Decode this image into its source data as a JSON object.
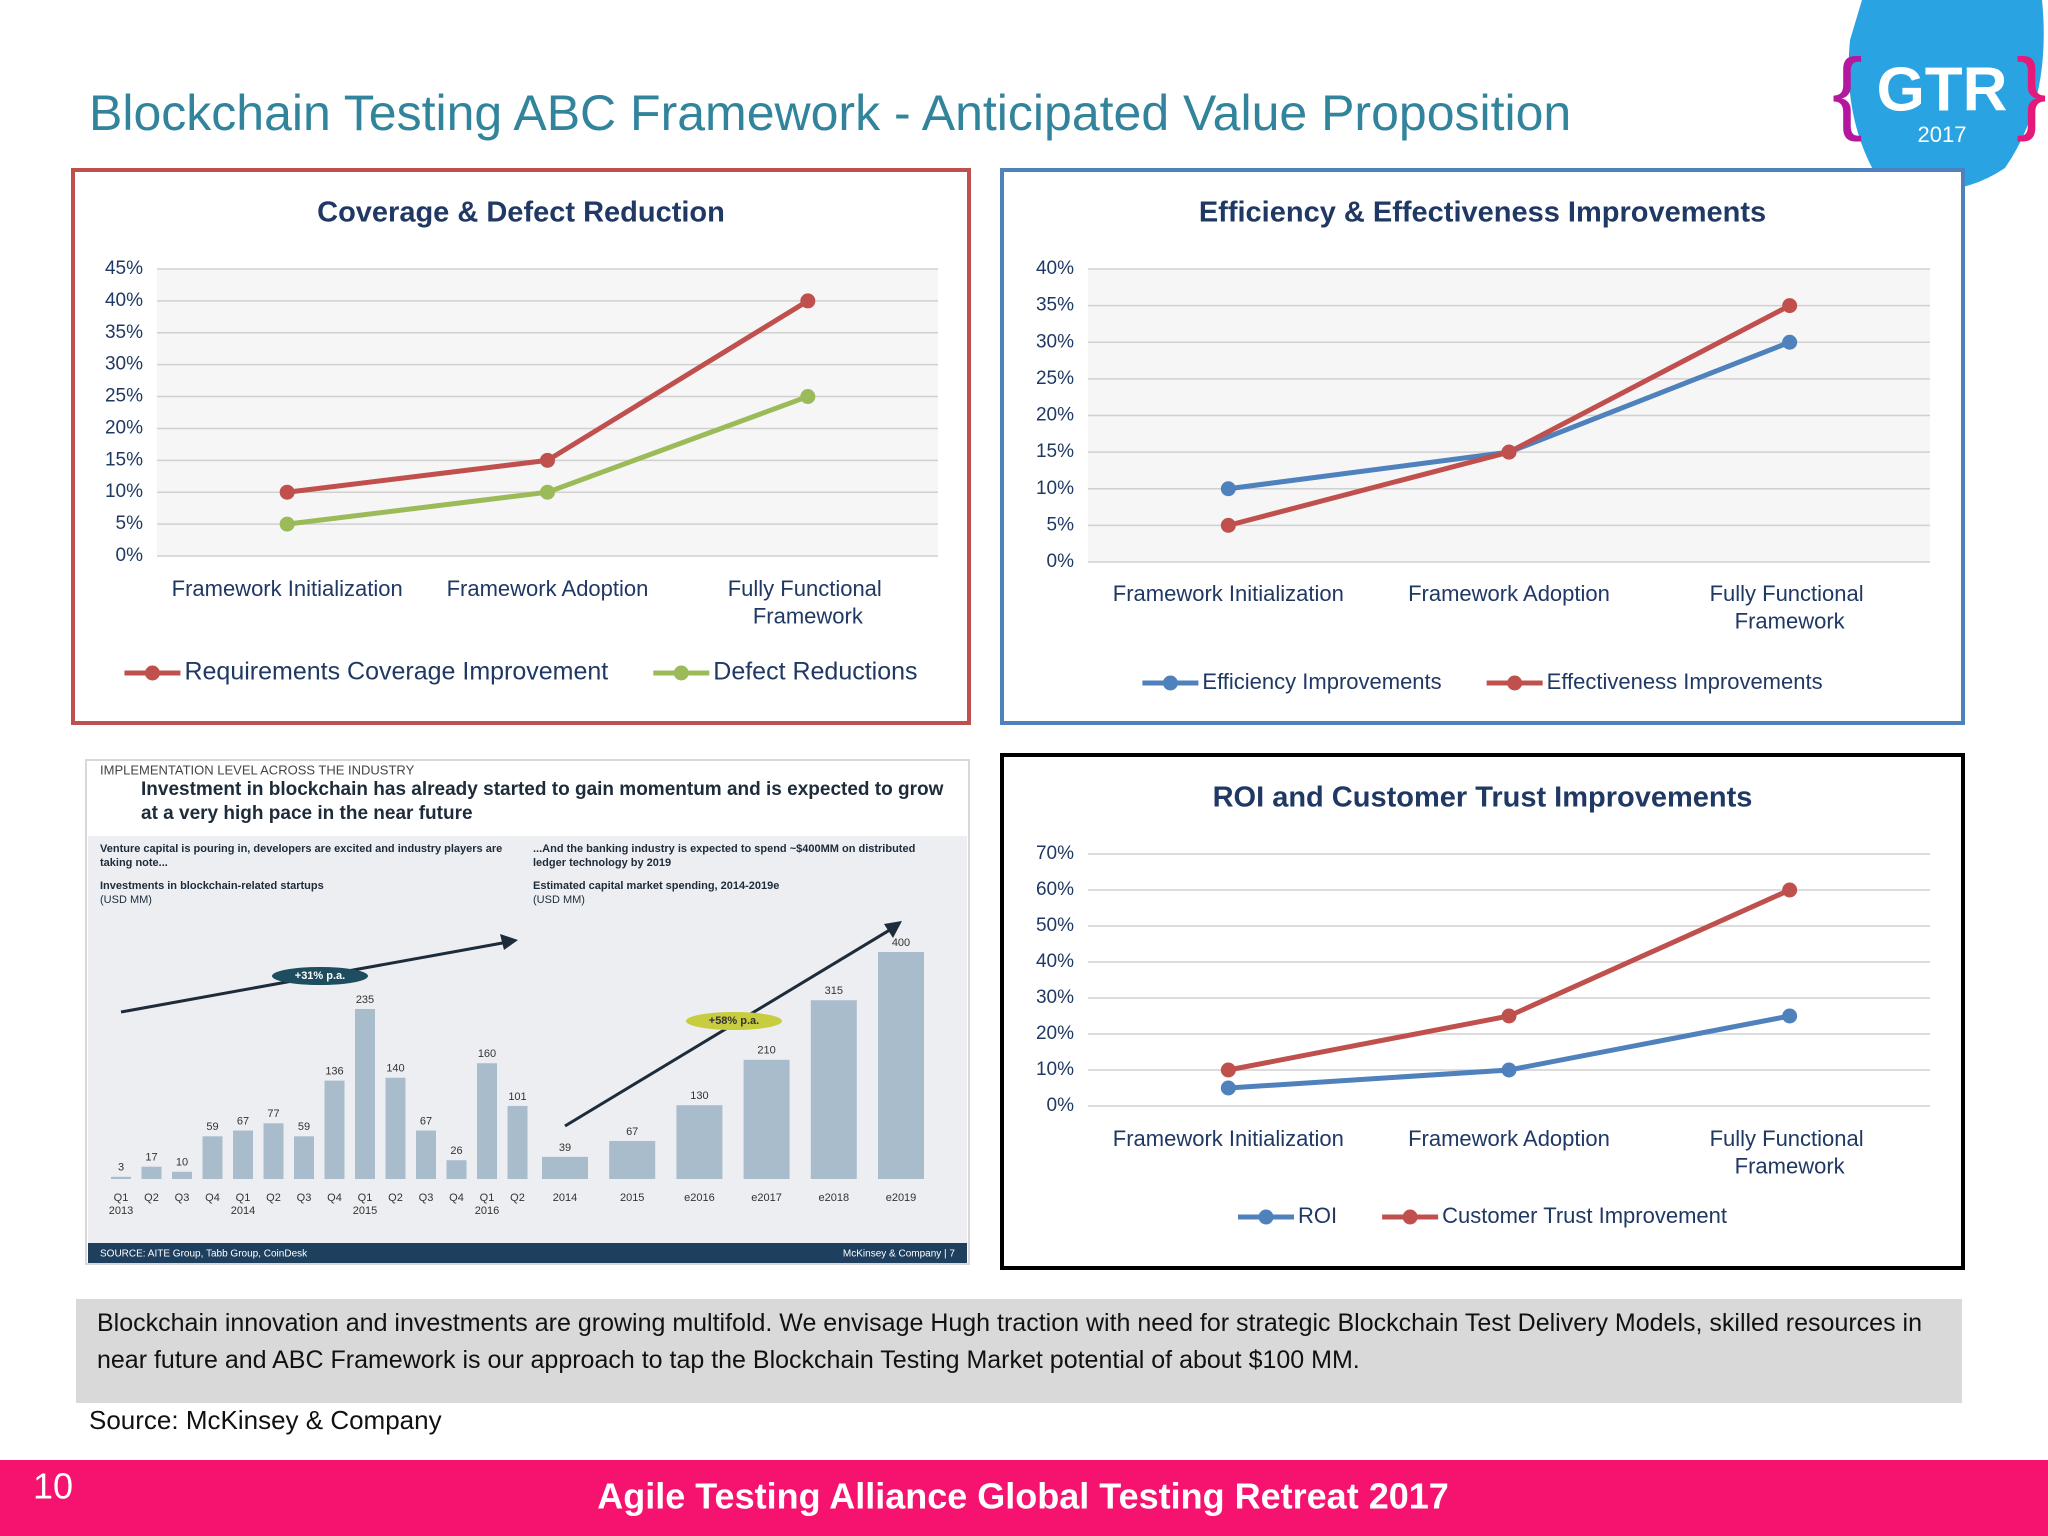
{
  "title": "Blockchain Testing ABC Framework - Anticipated Value Proposition",
  "logo": {
    "name": "GTR",
    "year": "2017"
  },
  "chart_data": [
    {
      "type": "line",
      "title": "Coverage & Defect Reduction",
      "categories": [
        "Framework Initialization",
        "Framework Adoption",
        "Fully Functional Framework"
      ],
      "series": [
        {
          "name": "Requirements Coverage Improvement",
          "color": "#c0504d",
          "values": [
            10,
            15,
            40
          ]
        },
        {
          "name": "Defect Reductions",
          "color": "#9bbb59",
          "values": [
            5,
            10,
            25
          ]
        }
      ],
      "ylim": [
        0,
        45
      ],
      "yticks": [
        {
          "value": 0,
          "label": "0%"
        },
        {
          "value": 5,
          "label": "5%"
        },
        {
          "value": 10,
          "label": "10%"
        },
        {
          "value": 15,
          "label": "15%"
        },
        {
          "value": 20,
          "label": "20%"
        },
        {
          "value": 25,
          "label": "25%"
        },
        {
          "value": 30,
          "label": "30%"
        },
        {
          "value": 35,
          "label": "35%"
        },
        {
          "value": 40,
          "label": "40%"
        },
        {
          "value": 45,
          "label": "45%"
        }
      ],
      "grid": true,
      "legend": "bottom",
      "border_color": "#c0504d"
    },
    {
      "type": "line",
      "title": "Efficiency & Effectiveness Improvements",
      "categories": [
        "Framework Initialization",
        "Framework Adoption",
        "Fully Functional Framework"
      ],
      "series": [
        {
          "name": "Efficiency Improvements",
          "color": "#4f81bd",
          "values": [
            10,
            15,
            30
          ]
        },
        {
          "name": "Effectiveness Improvements",
          "color": "#c0504d",
          "values": [
            5,
            15,
            35
          ]
        }
      ],
      "ylim": [
        0,
        40
      ],
      "yticks": [
        {
          "value": 0,
          "label": "0%"
        },
        {
          "value": 5,
          "label": "5%"
        },
        {
          "value": 10,
          "label": "10%"
        },
        {
          "value": 15,
          "label": "15%"
        },
        {
          "value": 20,
          "label": "20%"
        },
        {
          "value": 25,
          "label": "25%"
        },
        {
          "value": 30,
          "label": "30%"
        },
        {
          "value": 35,
          "label": "35%"
        },
        {
          "value": 40,
          "label": "40%"
        }
      ],
      "grid": true,
      "legend": "bottom",
      "border_color": "#4f81bd"
    },
    {
      "type": "line",
      "title": "ROI and Customer Trust Improvements",
      "categories": [
        "Framework Initialization",
        "Framework Adoption",
        "Fully Functional Framework"
      ],
      "series": [
        {
          "name": "ROI",
          "color": "#4f81bd",
          "values": [
            5,
            10,
            25
          ]
        },
        {
          "name": "Customer Trust Improvement",
          "color": "#c0504d",
          "values": [
            10,
            25,
            60
          ]
        }
      ],
      "ylim": [
        0,
        70
      ],
      "yticks": [
        {
          "value": 0,
          "label": "0%"
        },
        {
          "value": 10,
          "label": "10%"
        },
        {
          "value": 20,
          "label": "20%"
        },
        {
          "value": 30,
          "label": "30%"
        },
        {
          "value": 40,
          "label": "40%"
        },
        {
          "value": 50,
          "label": "50%"
        },
        {
          "value": 60,
          "label": "60%"
        },
        {
          "value": 70,
          "label": "70%"
        }
      ],
      "grid": true,
      "legend": "bottom",
      "border_color": "#000000"
    },
    {
      "type": "bar",
      "caption": "Venture capital is pouring in, developers are excited and industry players are taking note...",
      "title": "Investments in blockchain-related startups",
      "unit": "(USD MM)",
      "categories": [
        "Q1",
        "Q2",
        "Q3",
        "Q4",
        "Q1",
        "Q2",
        "Q3",
        "Q4",
        "Q1",
        "Q2",
        "Q3",
        "Q4",
        "Q1",
        "Q2"
      ],
      "sublabels": [
        "2013",
        null,
        null,
        null,
        "2014",
        null,
        null,
        null,
        "2015",
        null,
        null,
        null,
        "2016",
        null
      ],
      "values": [
        3,
        17,
        10,
        59,
        67,
        77,
        59,
        136,
        235,
        140,
        67,
        26,
        160,
        101
      ],
      "color": "#a9bccb",
      "annotation": "+31% p.a."
    },
    {
      "type": "bar",
      "caption": "...And the banking industry is expected to spend ~$400MM on distributed ledger technology by 2019",
      "title": "Estimated capital market spending, 2014-2019e",
      "unit": "(USD MM)",
      "categories": [
        "2014",
        "2015",
        "e2016",
        "e2017",
        "e2018",
        "e2019"
      ],
      "values": [
        39,
        67,
        130,
        210,
        315,
        400
      ],
      "color": "#a9bccb",
      "annotation": "+58% p.a."
    }
  ],
  "infographic": {
    "label": "IMPLEMENTATION LEVEL ACROSS THE INDUSTRY",
    "headline": "Investment in blockchain has already started to gain momentum and is expected to grow at a very high pace in the near future",
    "source": "SOURCE: AITE Group, Tabb Group, CoinDesk",
    "credit": "McKinsey & Company | 7"
  },
  "note": "Blockchain innovation and investments are growing multifold. We envisage Hugh traction with need for strategic Blockchain Test Delivery Models, skilled resources in near future and ABC Framework is our approach to tap the Blockchain Testing Market potential of  about $100 MM.",
  "source": "Source: McKinsey & Company",
  "footer": "Agile Testing Alliance  Global Testing Retreat 2017",
  "page_number": "10"
}
